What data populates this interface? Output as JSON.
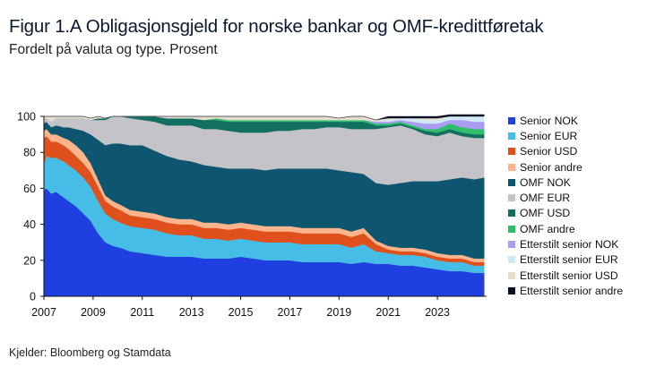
{
  "header": {
    "title": "Figur 1.A  Obligasjonsgjeld for norske bankar og OMF-kredittføretak",
    "subtitle": "Fordelt på valuta og type. Prosent"
  },
  "footer": {
    "source": "Kjelder: Bloomberg og Stamdata"
  },
  "chart_data": {
    "type": "area",
    "stacked": true,
    "title": "Obligasjonsgjeld for norske bankar og OMF-kredittføretak",
    "ylabel": "Prosent",
    "ylim": [
      0,
      100
    ],
    "yticks": [
      "0",
      "20",
      "40",
      "60",
      "80",
      "100"
    ],
    "xlim": [
      2007,
      2025
    ],
    "xticks": [
      "2007",
      "2009",
      "2011",
      "2013",
      "2015",
      "2017",
      "2019",
      "2021",
      "2023"
    ],
    "xtick_values": [
      2007,
      2009,
      2011,
      2013,
      2015,
      2017,
      2019,
      2021,
      2023
    ],
    "grid": false,
    "legend_position": "right",
    "x": [
      2007.0,
      2007.1,
      2007.3,
      2007.5,
      2007.8,
      2008.0,
      2008.3,
      2008.6,
      2008.9,
      2009.2,
      2009.5,
      2009.8,
      2010.1,
      2010.5,
      2011.0,
      2011.5,
      2012.0,
      2012.5,
      2013.0,
      2013.5,
      2014.0,
      2014.5,
      2015.0,
      2015.5,
      2016.0,
      2016.5,
      2017.0,
      2017.5,
      2018.0,
      2018.5,
      2019.0,
      2019.5,
      2020.0,
      2020.5,
      2021.0,
      2021.5,
      2022.0,
      2022.5,
      2023.0,
      2023.5,
      2024.0,
      2024.5,
      2024.9
    ],
    "series": [
      {
        "name": "Senior NOK",
        "color": "#1f3fe0",
        "values": [
          59,
          60,
          57,
          58,
          55,
          53,
          50,
          46,
          42,
          35,
          30,
          28,
          27,
          25,
          24,
          23,
          22,
          22,
          22,
          21,
          21,
          21,
          22,
          21,
          20,
          20,
          20,
          19,
          19,
          19,
          19,
          18,
          19,
          18,
          18,
          17,
          17,
          16,
          15,
          14,
          14,
          13,
          13
        ]
      },
      {
        "name": "Senior EUR",
        "color": "#46bde6",
        "values": [
          14,
          18,
          20,
          19,
          20,
          20,
          20,
          20,
          19,
          18,
          16,
          15,
          14,
          14,
          14,
          14,
          13,
          12,
          12,
          11,
          11,
          10,
          10,
          10,
          10,
          10,
          10,
          10,
          10,
          10,
          10,
          9,
          10,
          7,
          6,
          6,
          6,
          6,
          5,
          5,
          5,
          4,
          4
        ]
      },
      {
        "name": "Senior USD",
        "color": "#e0501c",
        "values": [
          15,
          11,
          9,
          9,
          9,
          9,
          8,
          8,
          8,
          8,
          7,
          7,
          7,
          6,
          6,
          6,
          6,
          6,
          6,
          6,
          6,
          6,
          6,
          6,
          6,
          6,
          6,
          6,
          6,
          6,
          6,
          6,
          6,
          4,
          2,
          2,
          2,
          2,
          2,
          2,
          2,
          2,
          2
        ]
      },
      {
        "name": "Senior andre",
        "color": "#fcb48a",
        "values": [
          4,
          4,
          4,
          4,
          4,
          5,
          6,
          6,
          5,
          4,
          3,
          3,
          3,
          3,
          3,
          3,
          3,
          3,
          3,
          3,
          3,
          3,
          3,
          3,
          3,
          3,
          3,
          3,
          3,
          3,
          3,
          3,
          3,
          2,
          2,
          2,
          2,
          2,
          2,
          2,
          2,
          2,
          2
        ]
      },
      {
        "name": "OMF NOK",
        "color": "#0e5570",
        "values": [
          4,
          4,
          4,
          5,
          6,
          7,
          9,
          12,
          16,
          22,
          28,
          32,
          34,
          36,
          37,
          35,
          34,
          33,
          32,
          32,
          31,
          31,
          30,
          31,
          31,
          32,
          32,
          33,
          33,
          33,
          32,
          33,
          30,
          32,
          34,
          36,
          37,
          38,
          40,
          42,
          43,
          44,
          45
        ]
      },
      {
        "name": "OMF EUR",
        "color": "#c3c3c8",
        "values": [
          3,
          2,
          3,
          4,
          5,
          5,
          6,
          7,
          8,
          11,
          14,
          15,
          15,
          15,
          14,
          16,
          17,
          19,
          20,
          20,
          21,
          21,
          20,
          20,
          21,
          21,
          21,
          22,
          22,
          23,
          24,
          24,
          25,
          30,
          32,
          32,
          29,
          26,
          25,
          26,
          23,
          23,
          22
        ]
      },
      {
        "name": "OMF USD",
        "color": "#137060",
        "values": [
          0,
          0,
          0,
          0,
          0,
          0,
          0,
          0,
          0,
          1,
          1,
          0,
          0,
          1,
          2,
          3,
          4,
          4,
          4,
          5,
          5,
          5,
          6,
          6,
          6,
          5,
          5,
          4,
          4,
          3,
          3,
          4,
          4,
          2,
          1,
          1,
          1,
          2,
          2,
          2,
          2,
          2,
          2
        ]
      },
      {
        "name": "OMF andre",
        "color": "#2fbe6c",
        "values": [
          0,
          0,
          0,
          0,
          0,
          0,
          0,
          0,
          0,
          0,
          0,
          0,
          0,
          0,
          0,
          0,
          0,
          0,
          0,
          0,
          1,
          1,
          1,
          1,
          1,
          1,
          1,
          1,
          1,
          1,
          1,
          1,
          1,
          1,
          1,
          1,
          1,
          1,
          2,
          3,
          3,
          3,
          3
        ]
      },
      {
        "name": "Etterstilt senior NOK",
        "color": "#a99df2",
        "values": [
          0,
          0,
          0,
          0,
          0,
          0,
          0,
          0,
          0,
          0,
          0,
          0,
          0,
          0,
          0,
          0,
          0,
          0,
          0,
          0,
          0,
          0,
          0,
          0,
          0,
          0,
          0,
          0,
          0,
          0,
          0,
          0,
          0,
          1,
          1,
          1,
          2,
          3,
          3,
          2,
          4,
          4,
          4
        ]
      },
      {
        "name": "Etterstilt senior EUR",
        "color": "#cfeaf6",
        "values": [
          0,
          0,
          0,
          0,
          0,
          0,
          0,
          0,
          0,
          0,
          0,
          0,
          0,
          0,
          0,
          0,
          0,
          0,
          0,
          0,
          0,
          0,
          0,
          0,
          0,
          0,
          0,
          0,
          0,
          0,
          0,
          0,
          0,
          0,
          1,
          1,
          2,
          2,
          2,
          2,
          2,
          3,
          3
        ]
      },
      {
        "name": "Etterstilt senior USD",
        "color": "#e4ddcc",
        "values": [
          1,
          1,
          3,
          1,
          1,
          1,
          1,
          1,
          1,
          1,
          0,
          0,
          0,
          0,
          0,
          0,
          1,
          1,
          1,
          2,
          1,
          2,
          2,
          2,
          2,
          2,
          2,
          2,
          2,
          2,
          1,
          2,
          2,
          1,
          1,
          0,
          0,
          1,
          1,
          0,
          0,
          0,
          0
        ]
      },
      {
        "name": "Etterstilt senior andre",
        "color": "#0b0f24",
        "values": [
          0,
          0,
          0,
          0,
          0,
          0,
          0,
          0,
          0,
          0,
          0,
          0,
          0,
          0,
          0,
          0,
          0,
          0,
          0,
          0,
          0,
          0,
          0,
          0,
          0,
          0,
          0,
          0,
          0,
          0,
          0,
          0,
          0,
          0,
          1,
          1,
          1,
          1,
          1,
          1,
          1,
          1,
          1
        ]
      }
    ]
  }
}
